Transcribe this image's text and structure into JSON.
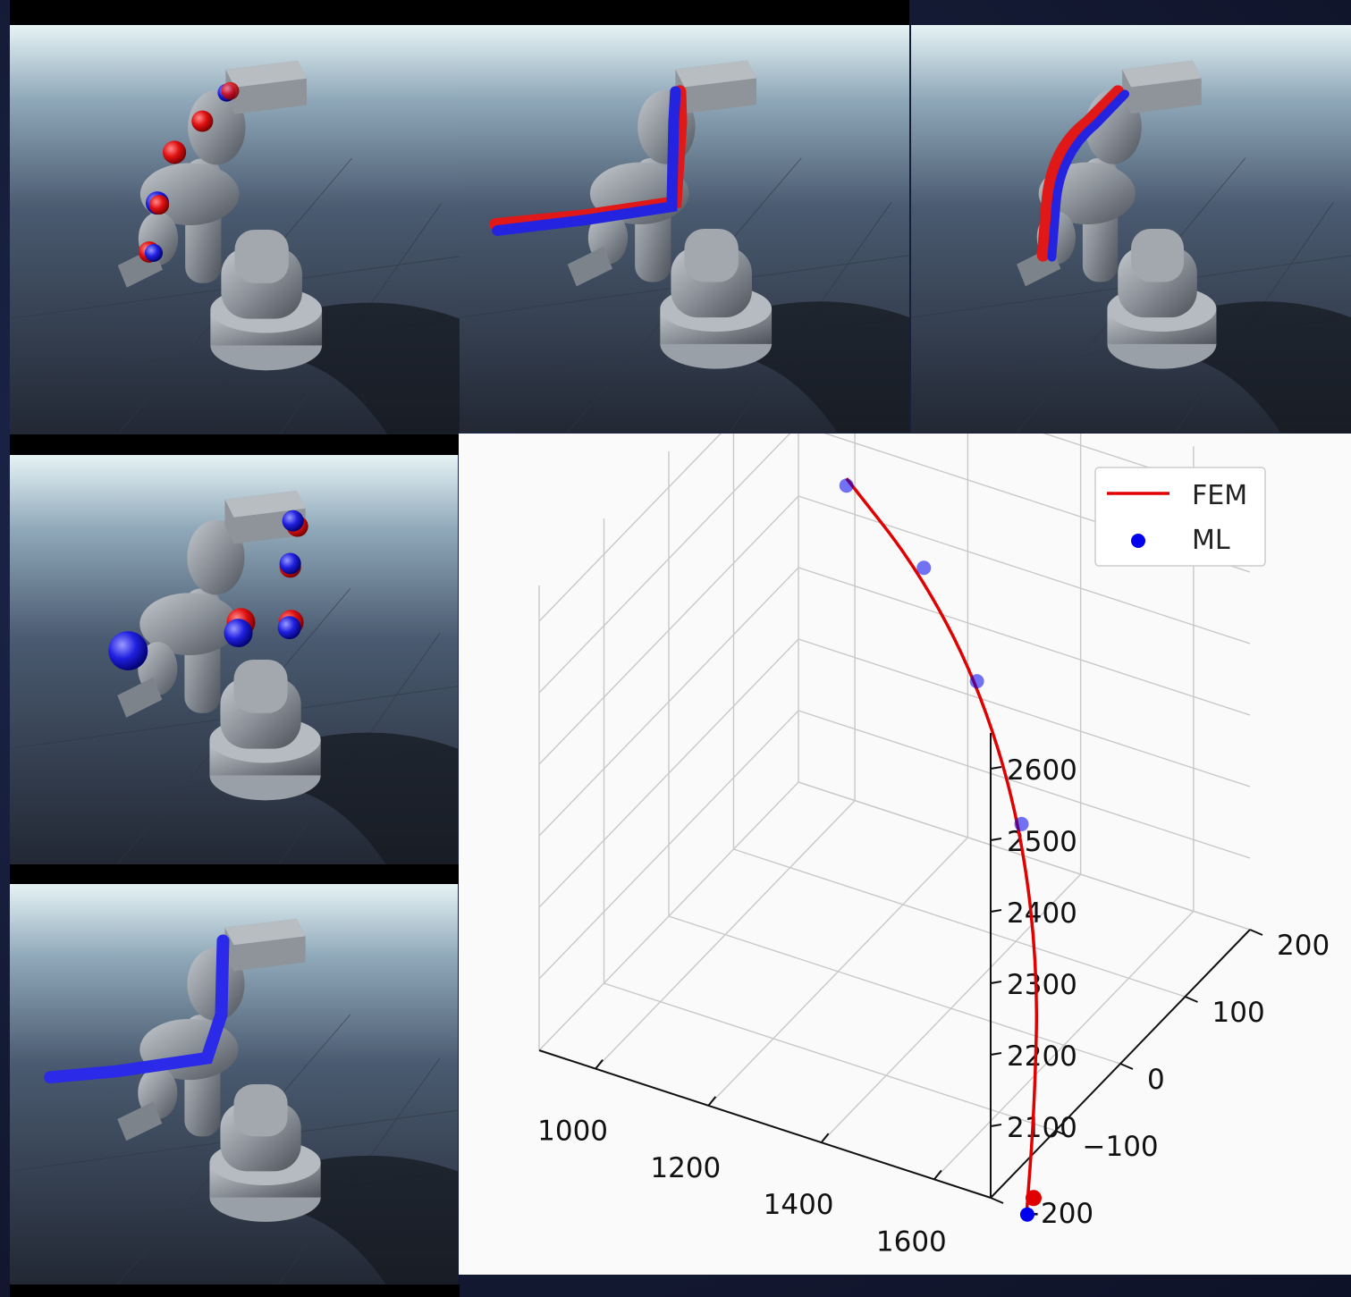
{
  "panels": [
    {
      "id": "p1",
      "markers": "spheres"
    },
    {
      "id": "p2",
      "markers": "tubes"
    },
    {
      "id": "p3",
      "markers": "tubes"
    },
    {
      "id": "p4",
      "markers": "spheres"
    },
    {
      "id": "p5",
      "markers": "tube"
    }
  ],
  "colors": {
    "fem": "#e00000",
    "ml": "#0000ee",
    "robot": "#8a8f96",
    "sky_top": "#dfeef3",
    "floor": "#262d3a"
  },
  "chart_data": {
    "type": "scatter",
    "title": "",
    "legend": {
      "entries": [
        "FEM",
        "ML"
      ],
      "placement": "top-right"
    },
    "grid": true,
    "xticks": [
      "1000",
      "1200",
      "1400",
      "1600"
    ],
    "yticks": [
      "200",
      "100",
      "0",
      "−100",
      "−200"
    ],
    "zticks": [
      "2600",
      "2500",
      "2400",
      "2300",
      "2200",
      "2100"
    ],
    "xlim": [
      900,
      1700
    ],
    "ylim": [
      -200,
      200
    ],
    "zlim": [
      2000,
      2650
    ],
    "series": [
      {
        "name": "FEM",
        "kind": "line",
        "color": "#e00000",
        "points": [
          [
            1100,
            100,
            2570
          ],
          [
            1250,
            80,
            2500
          ],
          [
            1400,
            40,
            2420
          ],
          [
            1520,
            0,
            2300
          ],
          [
            1600,
            -40,
            2150
          ],
          [
            1640,
            -80,
            2000
          ],
          [
            1660,
            -110,
            1880
          ]
        ]
      },
      {
        "name": "ML",
        "kind": "points",
        "color": "#0000ee",
        "points": [
          [
            1100,
            100,
            2560
          ],
          [
            1260,
            80,
            2505
          ],
          [
            1400,
            40,
            2420
          ],
          [
            1525,
            0,
            2290
          ],
          [
            1650,
            -100,
            1870
          ]
        ]
      }
    ]
  }
}
